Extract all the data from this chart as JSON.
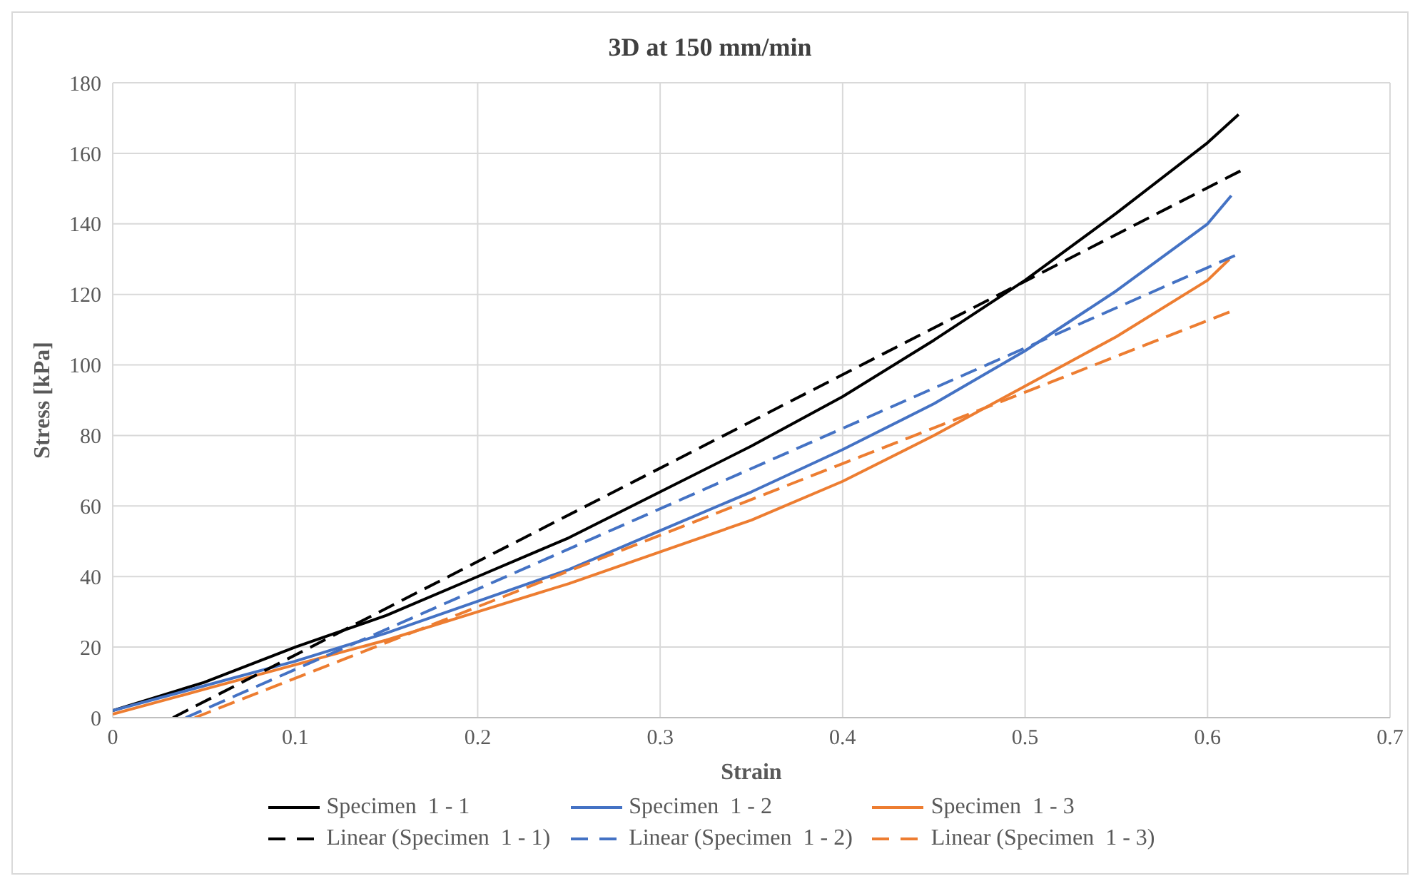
{
  "chart_data": {
    "type": "line",
    "title": "3D at 150 mm/min",
    "xlabel": "Strain",
    "ylabel": "Stress [kPa]",
    "xlim": [
      0,
      0.7
    ],
    "xticks": [
      0,
      0.1,
      0.2,
      0.3,
      0.4,
      0.5,
      0.6,
      0.7
    ],
    "ylim": [
      0,
      180
    ],
    "yticks": [
      0,
      20,
      40,
      60,
      80,
      100,
      120,
      140,
      160,
      180
    ],
    "grid": true,
    "legend": "bottom",
    "marker": "none",
    "series": [
      {
        "name": "Specimen  1 - 1",
        "color": "#000000",
        "line_style": "solid",
        "x": [
          0,
          0.05,
          0.1,
          0.15,
          0.2,
          0.25,
          0.3,
          0.35,
          0.4,
          0.45,
          0.5,
          0.55,
          0.6,
          0.617
        ],
        "values": [
          2,
          10,
          20,
          29,
          40,
          51,
          64,
          77,
          91,
          107,
          124,
          143,
          163,
          171
        ]
      },
      {
        "name": "Specimen  1 - 2",
        "color": "#4472c4",
        "line_style": "solid",
        "x": [
          0,
          0.05,
          0.1,
          0.15,
          0.2,
          0.25,
          0.3,
          0.35,
          0.4,
          0.45,
          0.5,
          0.55,
          0.6,
          0.613
        ],
        "values": [
          2,
          9,
          16,
          24,
          33,
          42,
          53,
          64,
          76,
          89,
          104,
          121,
          140,
          148
        ]
      },
      {
        "name": "Specimen  1 - 3",
        "color": "#ed7d31",
        "line_style": "solid",
        "x": [
          0,
          0.05,
          0.1,
          0.15,
          0.2,
          0.25,
          0.3,
          0.35,
          0.4,
          0.45,
          0.5,
          0.55,
          0.6,
          0.612
        ],
        "values": [
          1,
          8,
          15,
          22,
          30,
          38,
          47,
          56,
          67,
          80,
          94,
          108,
          124,
          130
        ]
      },
      {
        "name": "Linear (Specimen  1 - 1)",
        "color": "#000000",
        "line_style": "dashed",
        "x": [
          0.033,
          0.618
        ],
        "values": [
          0,
          155
        ]
      },
      {
        "name": "Linear (Specimen  1 - 2)",
        "color": "#4472c4",
        "line_style": "dashed",
        "x": [
          0.04,
          0.615
        ],
        "values": [
          0,
          131
        ]
      },
      {
        "name": "Linear (Specimen  1 - 3)",
        "color": "#ed7d31",
        "line_style": "dashed",
        "x": [
          0.045,
          0.612
        ],
        "values": [
          0,
          115
        ]
      }
    ]
  }
}
